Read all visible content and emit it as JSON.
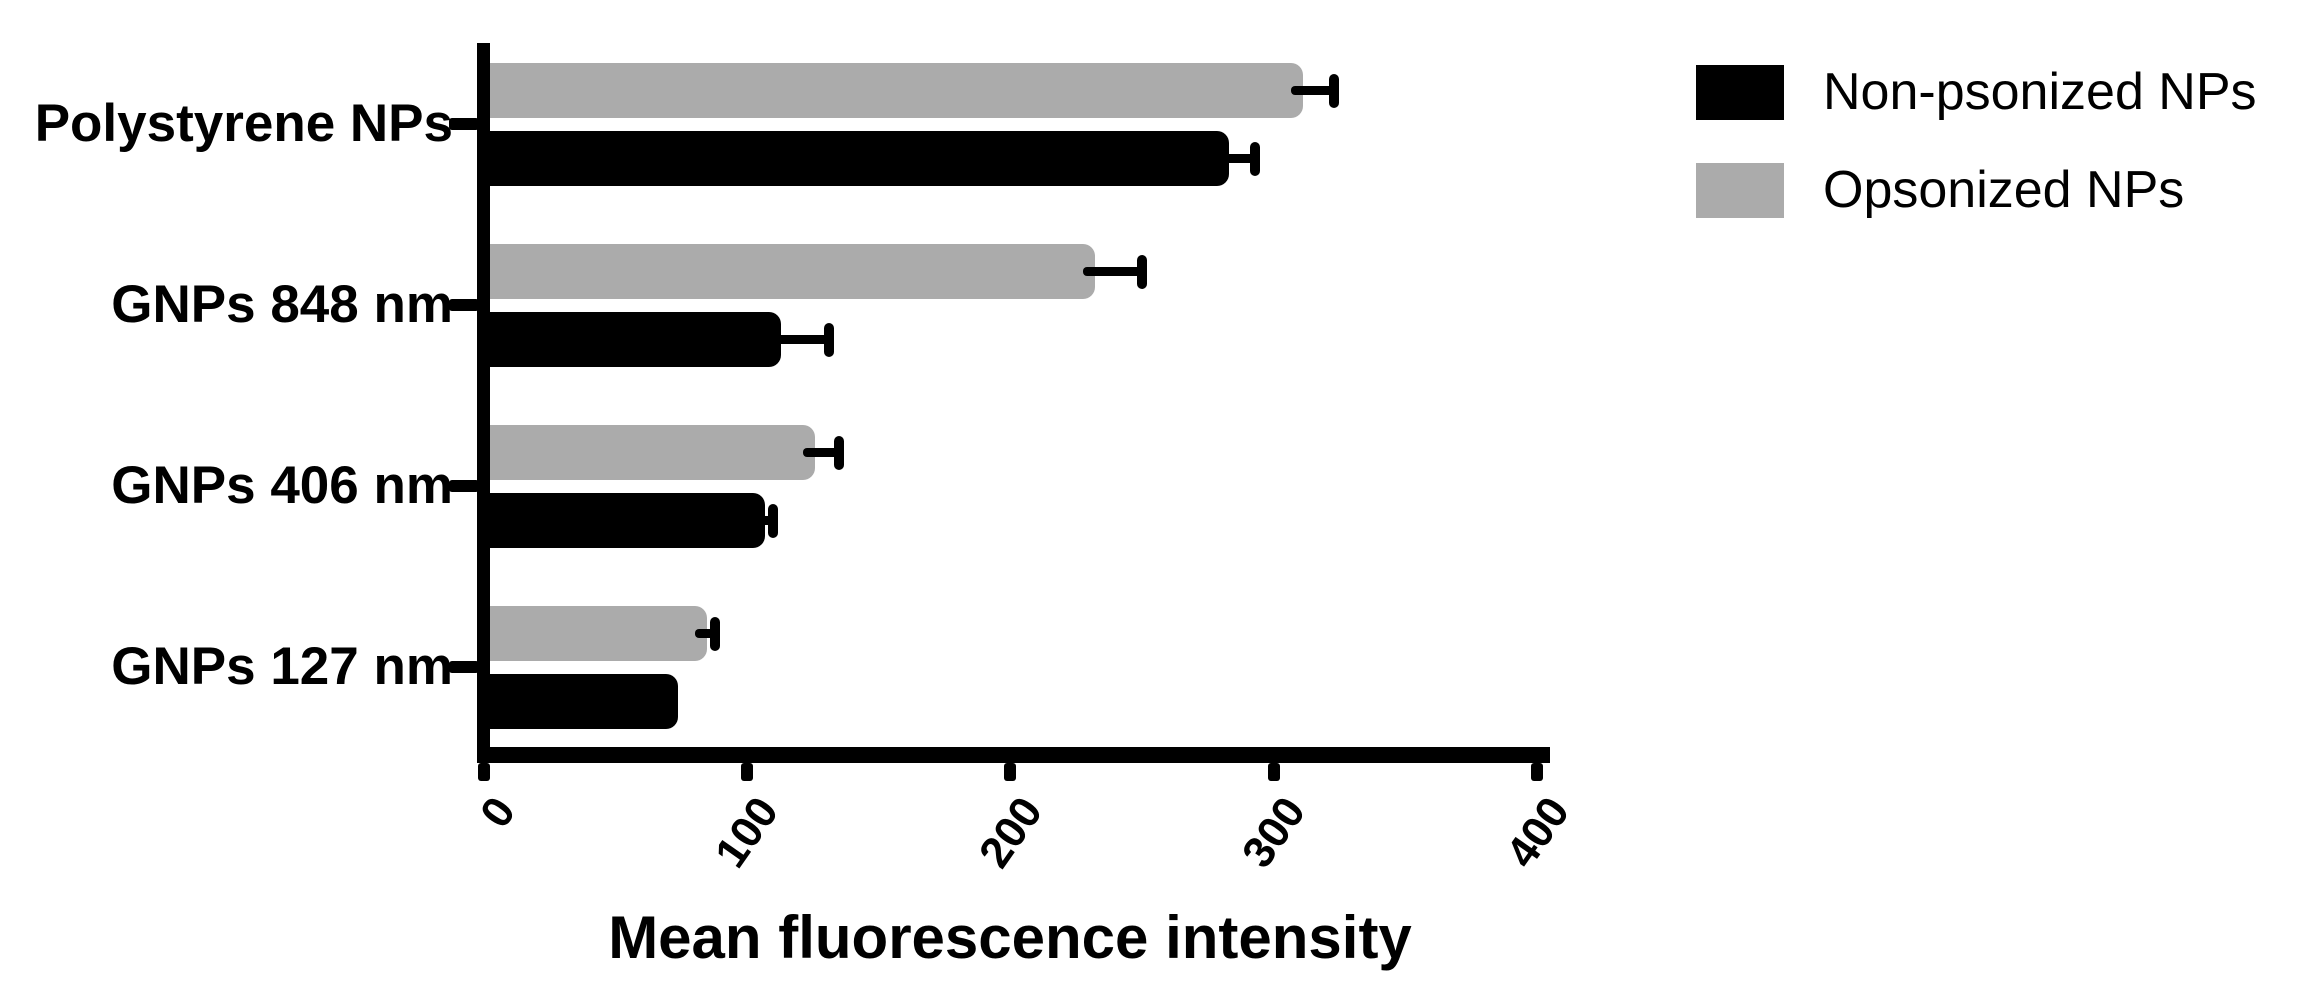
{
  "chart_data": {
    "type": "bar",
    "orientation": "horizontal",
    "title": "",
    "xlabel": "Mean fluorescence intensity",
    "ylabel": "",
    "categories": [
      "Polystyrene NPs",
      "GNPs 848 nm",
      "GNPs 406 nm",
      "GNPs 127 nm"
    ],
    "series": [
      {
        "name": "Non-psonized NPs",
        "color": "#000000",
        "values": [
          283,
          113,
          107,
          74
        ],
        "errors": [
          10,
          18,
          3,
          0
        ]
      },
      {
        "name": "Opsonized NPs",
        "color": "#ababab",
        "values": [
          311,
          232,
          126,
          85
        ],
        "errors": [
          12,
          18,
          9,
          3
        ]
      }
    ],
    "group_order_top_to_bottom": [
      "Opsonized NPs",
      "Non-psonized NPs"
    ],
    "error_bars": true,
    "xlim": [
      0,
      400
    ],
    "x_ticks": [
      0,
      100,
      200,
      300,
      400
    ],
    "x_tick_labels": [
      "0",
      "100",
      "200",
      "300",
      "400"
    ],
    "tick_label_rotation_deg": -55,
    "grid": false,
    "legend_position": "top-right",
    "background_color": "#ffffff",
    "axis_color": "#000000"
  }
}
